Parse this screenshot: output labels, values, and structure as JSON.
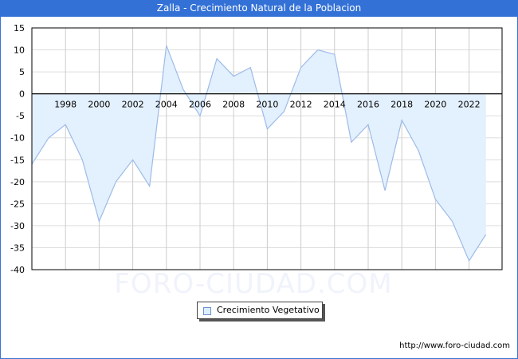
{
  "title": "Zalla - Crecimiento Natural de la Poblacion",
  "watermark": "FORO-CIUDAD.COM",
  "footer_url": "http://www.foro-ciudad.com",
  "legend": {
    "label": "Crecimiento Vegetativo",
    "swatch_color": "#ddeeff"
  },
  "colors": {
    "titlebar": "#3371d6",
    "line": "#9dbbe8",
    "fill": "#e3f0fd",
    "grid": "#cccccc"
  },
  "chart_data": {
    "type": "area",
    "title": "Zalla - Crecimiento Natural de la Poblacion",
    "xlabel": "",
    "ylabel": "",
    "ylim": [
      -40,
      15
    ],
    "yticks": [
      15,
      10,
      5,
      0,
      -5,
      -10,
      -15,
      -20,
      -25,
      -30,
      -35,
      -40
    ],
    "xtick_labels": [
      "1998",
      "2000",
      "2002",
      "2004",
      "2006",
      "2008",
      "2010",
      "2012",
      "2014",
      "2016",
      "2018",
      "2020",
      "2022"
    ],
    "grid": true,
    "legend_position": "bottom",
    "series": [
      {
        "name": "Crecimiento Vegetativo",
        "x": [
          1996,
          1997,
          1998,
          1999,
          2000,
          2001,
          2002,
          2003,
          2004,
          2005,
          2006,
          2007,
          2008,
          2009,
          2010,
          2011,
          2012,
          2013,
          2014,
          2015,
          2016,
          2017,
          2018,
          2019,
          2020,
          2021,
          2022,
          2023
        ],
        "values": [
          -16,
          -10,
          -7,
          -15,
          -29,
          -20,
          -15,
          -21,
          11,
          1,
          -5,
          8,
          4,
          6,
          -8,
          -4,
          6,
          10,
          9,
          -11,
          -7,
          -22,
          -6,
          -13,
          -24,
          -29,
          -38,
          -32
        ]
      }
    ]
  }
}
